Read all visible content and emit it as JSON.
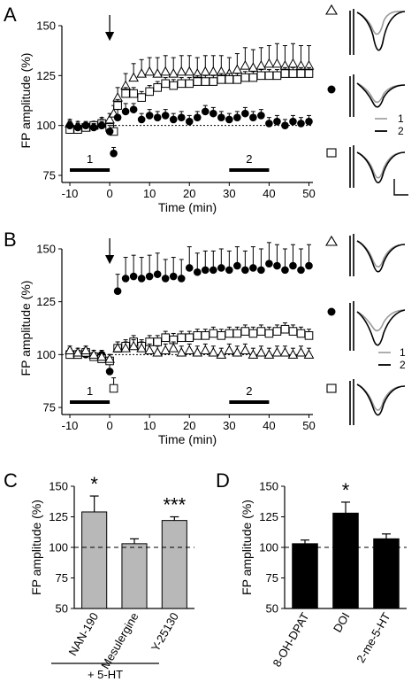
{
  "panel_labels": [
    "A",
    "B",
    "C",
    "D"
  ],
  "marker_keys": {
    "triangle": "open-triangle",
    "filled": "filled-circle",
    "square": "open-square"
  },
  "colors": {
    "black": "#000000",
    "gray_bar": "#b8b8b8",
    "trace_gray": "#9a9a9a"
  },
  "chart_data": [
    {
      "panel": "A",
      "type": "scatter",
      "xlabel": "Time (min)",
      "ylabel": "FP amplitude (%)",
      "xlim": [
        -12,
        51
      ],
      "ylim": [
        75,
        150
      ],
      "xticks": [
        -10,
        0,
        10,
        20,
        30,
        40,
        50
      ],
      "yticks": [
        75,
        100,
        125,
        150
      ],
      "baseline": 100,
      "arrow_x": 0,
      "periods": [
        {
          "label": "1",
          "x": [
            -10,
            0
          ]
        },
        {
          "label": "2",
          "x": [
            30,
            40
          ]
        }
      ],
      "series": [
        {
          "marker": "open-triangle",
          "x": [
            -10,
            -8,
            -6,
            -4,
            -2,
            0,
            1,
            2,
            4,
            6,
            8,
            10,
            12,
            14,
            16,
            18,
            20,
            22,
            24,
            26,
            28,
            30,
            32,
            34,
            36,
            38,
            40,
            42,
            44,
            46,
            48,
            50
          ],
          "y": [
            101,
            100,
            99,
            100,
            102,
            103,
            106,
            114,
            120,
            124,
            126,
            127,
            126,
            127,
            126,
            127,
            127,
            126,
            127,
            127,
            127,
            126,
            128,
            130,
            129,
            130,
            131,
            131,
            130,
            131,
            130,
            130
          ],
          "err": [
            2,
            2,
            2,
            2,
            2,
            3,
            4,
            5,
            6,
            7,
            7,
            7,
            8,
            8,
            8,
            8,
            8,
            8,
            8,
            8,
            8,
            8,
            8,
            9,
            9,
            9,
            9,
            10,
            10,
            10,
            10,
            10
          ]
        },
        {
          "marker": "open-square",
          "x": [
            -10,
            -8,
            -6,
            -4,
            -2,
            0,
            1,
            2,
            4,
            6,
            8,
            10,
            12,
            14,
            16,
            18,
            20,
            22,
            24,
            26,
            28,
            30,
            32,
            34,
            36,
            38,
            40,
            42,
            44,
            46,
            48,
            50
          ],
          "y": [
            98,
            98,
            99,
            100,
            101,
            99,
            97,
            110,
            116,
            116,
            114,
            117,
            119,
            121,
            120,
            121,
            121,
            122,
            122,
            122,
            123,
            123,
            123,
            124,
            124,
            125,
            125,
            125,
            126,
            126,
            126,
            126
          ],
          "err": [
            2,
            2,
            2,
            2,
            2,
            2,
            3,
            3,
            3,
            3,
            3,
            3,
            3,
            3,
            3,
            3,
            3,
            3,
            3,
            3,
            3,
            3,
            3,
            3,
            3,
            3,
            3,
            3,
            3,
            3,
            3,
            3
          ]
        },
        {
          "marker": "filled-circle",
          "x": [
            -10,
            -8,
            -6,
            -4,
            -2,
            0,
            1,
            2,
            4,
            6,
            8,
            10,
            12,
            14,
            16,
            18,
            20,
            22,
            24,
            26,
            28,
            30,
            32,
            34,
            36,
            38,
            40,
            42,
            44,
            46,
            48,
            50
          ],
          "y": [
            100,
            99,
            100,
            99,
            100,
            97,
            86,
            104,
            107,
            108,
            103,
            105,
            104,
            105,
            103,
            104,
            102,
            104,
            107,
            106,
            104,
            103,
            104,
            106,
            104,
            105,
            101,
            102,
            100,
            102,
            101,
            102
          ],
          "err": [
            2,
            2,
            2,
            2,
            2,
            3,
            3,
            4,
            4,
            3,
            3,
            3,
            3,
            3,
            3,
            3,
            3,
            3,
            3,
            3,
            3,
            3,
            3,
            3,
            3,
            3,
            3,
            3,
            3,
            3,
            3,
            3
          ]
        }
      ],
      "trace_legend": [
        "1",
        "2"
      ]
    },
    {
      "panel": "B",
      "type": "scatter",
      "xlabel": "Time (min)",
      "ylabel": "FP amplitude (%)",
      "xlim": [
        -12,
        51
      ],
      "ylim": [
        75,
        150
      ],
      "xticks": [
        -10,
        0,
        10,
        20,
        30,
        40,
        50
      ],
      "yticks": [
        75,
        100,
        125,
        150
      ],
      "baseline": 100,
      "arrow_x": 0,
      "periods": [
        {
          "label": "1",
          "x": [
            -10,
            0
          ]
        },
        {
          "label": "2",
          "x": [
            30,
            40
          ]
        }
      ],
      "series": [
        {
          "marker": "filled-circle",
          "x": [
            -10,
            -8,
            -6,
            -4,
            -2,
            0,
            2,
            4,
            6,
            8,
            10,
            12,
            14,
            16,
            18,
            20,
            22,
            24,
            26,
            28,
            30,
            32,
            34,
            36,
            38,
            40,
            42,
            44,
            46,
            48,
            50
          ],
          "y": [
            101,
            100,
            100,
            99,
            100,
            92,
            130,
            136,
            137,
            136,
            137,
            138,
            136,
            137,
            136,
            141,
            139,
            140,
            140,
            141,
            140,
            142,
            140,
            141,
            140,
            143,
            142,
            140,
            142,
            140,
            142
          ],
          "err": [
            2,
            2,
            2,
            2,
            2,
            6,
            8,
            10,
            10,
            10,
            10,
            10,
            9,
            9,
            9,
            10,
            9,
            9,
            9,
            9,
            9,
            9,
            9,
            10,
            10,
            10,
            10,
            10,
            10,
            10,
            10
          ]
        },
        {
          "marker": "open-square",
          "x": [
            -10,
            -8,
            -6,
            -4,
            -2,
            0,
            1,
            2,
            4,
            6,
            8,
            10,
            12,
            14,
            16,
            18,
            20,
            22,
            24,
            26,
            28,
            30,
            32,
            34,
            36,
            38,
            40,
            42,
            44,
            46,
            48,
            50
          ],
          "y": [
            100,
            100,
            101,
            99,
            98,
            97,
            84,
            103,
            104,
            106,
            104,
            106,
            106,
            108,
            107,
            108,
            108,
            109,
            109,
            110,
            109,
            110,
            110,
            111,
            110,
            111,
            110,
            111,
            112,
            111,
            110,
            109
          ],
          "err": [
            2,
            2,
            2,
            2,
            2,
            3,
            5,
            3,
            3,
            3,
            3,
            3,
            3,
            3,
            3,
            3,
            3,
            3,
            3,
            3,
            3,
            3,
            3,
            3,
            3,
            3,
            3,
            3,
            3,
            3,
            3,
            3
          ]
        },
        {
          "marker": "open-triangle",
          "x": [
            -10,
            -8,
            -6,
            -4,
            -2,
            0,
            2,
            4,
            6,
            8,
            10,
            12,
            14,
            16,
            18,
            20,
            22,
            24,
            26,
            28,
            30,
            32,
            34,
            36,
            38,
            40,
            42,
            44,
            46,
            48,
            50
          ],
          "y": [
            102,
            101,
            102,
            100,
            99,
            98,
            103,
            103,
            104,
            103,
            102,
            101,
            102,
            103,
            101,
            102,
            101,
            102,
            101,
            100,
            102,
            101,
            102,
            100,
            101,
            100,
            101,
            101,
            100,
            101,
            100
          ],
          "err": [
            2,
            2,
            2,
            2,
            2,
            2,
            3,
            3,
            3,
            3,
            3,
            3,
            3,
            3,
            3,
            3,
            3,
            3,
            3,
            3,
            3,
            3,
            3,
            3,
            3,
            3,
            3,
            3,
            3,
            3,
            3
          ]
        }
      ],
      "trace_legend": [
        "1",
        "2"
      ]
    },
    {
      "panel": "C",
      "type": "bar",
      "ylabel": "FP amplitude (%)",
      "ylim": [
        50,
        150
      ],
      "yticks": [
        50,
        75,
        100,
        125,
        150
      ],
      "baseline": 100,
      "categories": [
        "NAN-190",
        "Mesulergine",
        "Y-25130"
      ],
      "values": [
        129,
        103,
        122
      ],
      "err": [
        13,
        4,
        3
      ],
      "significance": [
        "*",
        "",
        "***"
      ],
      "group_label": "+ 5-HT"
    },
    {
      "panel": "D",
      "type": "bar",
      "ylabel": "FP amplitude (%)",
      "ylim": [
        50,
        150
      ],
      "yticks": [
        50,
        75,
        100,
        125,
        150
      ],
      "baseline": 100,
      "categories": [
        "8-OH-DPAT",
        "DOI",
        "2-me-5-HT"
      ],
      "values": [
        103,
        128,
        107
      ],
      "err": [
        3,
        9,
        4
      ],
      "significance": [
        "",
        "*",
        ""
      ]
    }
  ]
}
